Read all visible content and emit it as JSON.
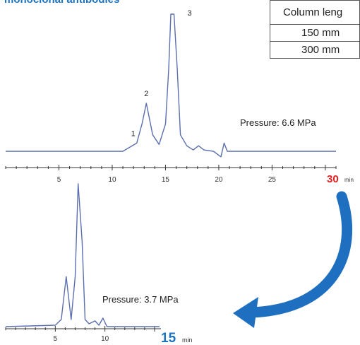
{
  "title": "monoclonal antibodies",
  "table": {
    "header": "Column leng",
    "rows": [
      "150 mm",
      "300 mm"
    ]
  },
  "colors": {
    "trace": "#5b6fae",
    "accent_red": "#e02020",
    "accent_blue": "#1e73be",
    "arrow": "#1f6fc0",
    "axis": "#333333"
  },
  "chart_data": [
    {
      "type": "line",
      "xlim": [
        0,
        31
      ],
      "xticks": [
        5,
        10,
        15,
        20,
        25
      ],
      "end_label": "30",
      "end_unit": "min",
      "annotation": "Pressure: 6.6 MPa",
      "peaks": [
        {
          "label": "1",
          "x": 12.3,
          "rel_height": 0.06
        },
        {
          "label": "2",
          "x": 13.2,
          "rel_height": 0.35
        },
        {
          "label": "3",
          "x": 15.8,
          "rel_height": 1.0
        }
      ],
      "x": [
        0,
        11,
        12.3,
        12.8,
        13.2,
        13.8,
        14.4,
        15.0,
        15.3,
        15.5,
        15.8,
        16.1,
        16.4,
        17.0,
        17.6,
        18.1,
        18.6,
        19.5,
        20.2,
        20.5,
        20.8,
        21.5,
        31
      ],
      "y": [
        0.0,
        0.0,
        0.06,
        0.2,
        0.35,
        0.12,
        0.05,
        0.2,
        0.6,
        1.0,
        1.0,
        0.6,
        0.12,
        0.04,
        0.01,
        0.04,
        0.01,
        0.0,
        -0.04,
        0.06,
        0.0,
        0.0,
        0.0
      ]
    },
    {
      "type": "line",
      "xlim": [
        0,
        15.5
      ],
      "xticks": [
        5,
        10
      ],
      "end_label": "15",
      "end_unit": "min",
      "annotation": "Pressure: 3.7 MPa",
      "x": [
        0,
        5.0,
        5.6,
        6.1,
        6.6,
        7.0,
        7.3,
        7.7,
        8.0,
        8.4,
        9.0,
        9.4,
        9.8,
        10.2,
        15.5
      ],
      "y": [
        0.0,
        0.01,
        0.05,
        0.35,
        0.05,
        0.35,
        1.0,
        0.6,
        0.05,
        0.02,
        0.04,
        0.01,
        0.06,
        0.0,
        0.0
      ]
    }
  ]
}
